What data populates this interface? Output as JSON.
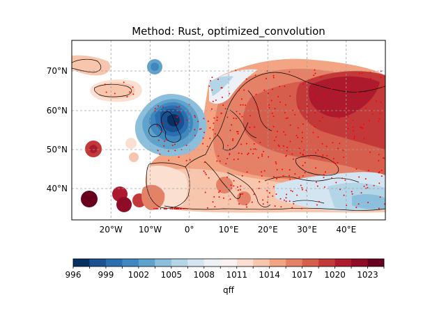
{
  "title": "Method: Rust, optimized_convolution",
  "map": {
    "lon_range": [
      -30,
      50
    ],
    "lat_range": [
      32.5,
      78
    ],
    "lon_ticks": [
      {
        "value": -20,
        "label": "20°W"
      },
      {
        "value": -10,
        "label": "10°W"
      },
      {
        "value": 0,
        "label": "0°"
      },
      {
        "value": 10,
        "label": "10°E"
      },
      {
        "value": 20,
        "label": "20°E"
      },
      {
        "value": 30,
        "label": "30°E"
      },
      {
        "value": 40,
        "label": "40°E"
      }
    ],
    "lat_ticks": [
      {
        "value": 40,
        "label": "40°N"
      },
      {
        "value": 50,
        "label": "50°N"
      },
      {
        "value": 60,
        "label": "60°N"
      },
      {
        "value": 70,
        "label": "70°N"
      }
    ],
    "gridlines": true,
    "station_color": "#ff0000"
  },
  "colorbar": {
    "label": "qff",
    "min": 996,
    "max": 1024.5,
    "step": 1.5,
    "tick_values": [
      996,
      999,
      1002,
      1005,
      1008,
      1011,
      1014,
      1017,
      1020,
      1023
    ],
    "tick_labels": [
      "996",
      "999",
      "1002",
      "1005",
      "1008",
      "1011",
      "1014",
      "1017",
      "1020",
      "1023"
    ],
    "colors": [
      "#053061",
      "#1a5190",
      "#2b6eb0",
      "#3e87bf",
      "#5fa2cc",
      "#8bbfdb",
      "#b3d5e8",
      "#d3e5f0",
      "#ebf1f5",
      "#f8f3f0",
      "#fbe0d2",
      "#f8c5ad",
      "#f2a483",
      "#e48166",
      "#d65e4d",
      "#c3393a",
      "#ad1a2e",
      "#8e0c25",
      "#67001f"
    ]
  }
}
